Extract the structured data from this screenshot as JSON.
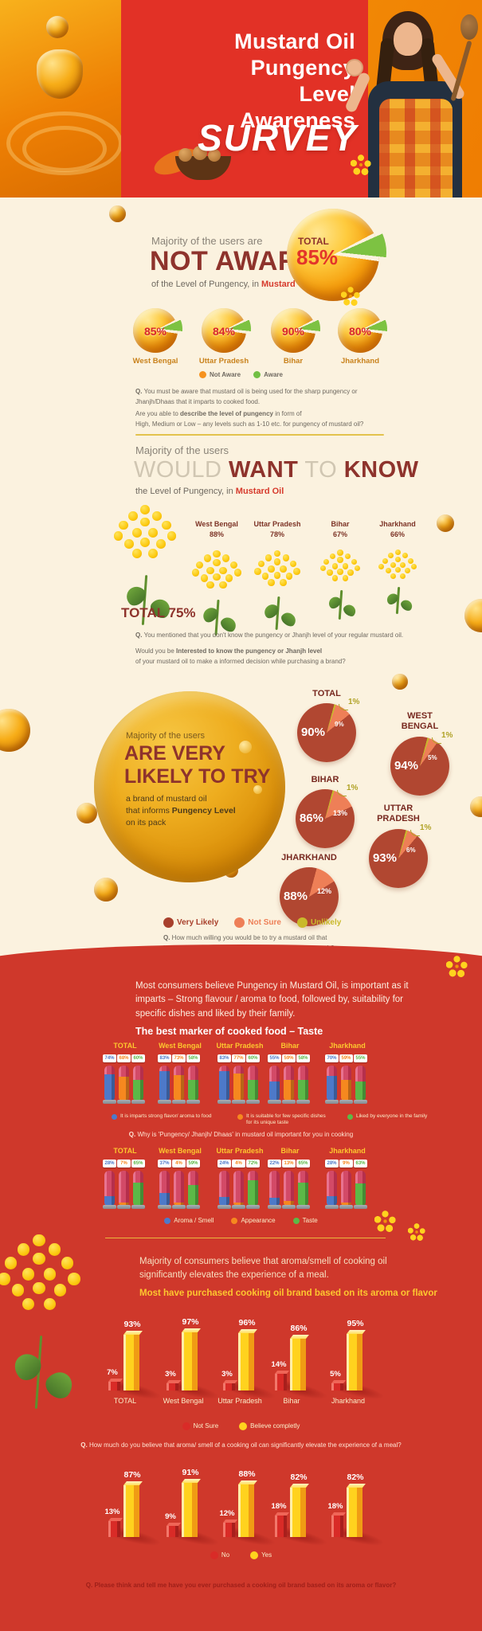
{
  "palette": {
    "cream": "#fbf2df",
    "header_orange": "#f28a06",
    "header_red": "#e23126",
    "red_zone": "#cf382b",
    "maroon": "#8e332c",
    "accent_red": "#d63a2c",
    "not_aware_orange": "#f6921e",
    "aware_green": "#72bf44",
    "very_likely": "#a8402c",
    "not_sure": "#ee7f57",
    "unlikely": "#c9b92b",
    "bar_blue": "#4d79c9",
    "bar_orange": "#f6881f",
    "bar_green": "#5cb947",
    "yellow": "#fdc72f",
    "chart_yellow": "#ffd21e",
    "chart_red": "#d92b27"
  },
  "header": {
    "title_lines": "Mustard Oil\nPungency\nLevel\nAwareness",
    "survey_label": "SURVEY"
  },
  "awareness": {
    "intro": "Majority of the users are",
    "headline": "NOT AWARE",
    "sub_parts": [
      {
        "t": "of the Level of Pungency, in "
      },
      {
        "t": "Mustard Oil",
        "b": true,
        "c": "#d63a2c"
      }
    ],
    "total_label": "TOTAL",
    "total_value": "85%",
    "legend": [
      {
        "label": "Not Aware",
        "color": "#f6921e"
      },
      {
        "label": "Aware",
        "color": "#72bf44"
      }
    ],
    "question1": [
      {
        "t": "Q. ",
        "b": true
      },
      {
        "t": "You must be aware that mustard oil is being used for the sharp pungency or\nJhanjh/Dhaas that it imparts to cooked food."
      }
    ],
    "question2": [
      {
        "t": "Are you able to "
      },
      {
        "t": "describe the level of pungency",
        "b": true
      },
      {
        "t": " in form of\nHigh, Medium or Low – any levels such as 1-10 etc. for pungency of mustard oil?"
      }
    ]
  },
  "want_to_know": {
    "intro": "Majority of the users",
    "headline_parts": [
      {
        "t": "WOULD ",
        "c": "#d0c6b2"
      },
      {
        "t": "WANT",
        "b": true,
        "c": "#8e332c"
      },
      {
        "t": " TO ",
        "c": "#d0c6b2"
      },
      {
        "t": "KNOW",
        "b": true,
        "c": "#8e332c"
      }
    ],
    "sub_parts": [
      {
        "t": "the Level of Pungency, in "
      },
      {
        "t": "Mustard Oil",
        "b": true,
        "c": "#d63a2c"
      }
    ],
    "total_label": "TOTAL 75%",
    "question1": [
      {
        "t": "Q. ",
        "b": true
      },
      {
        "t": "You mentioned that you don't know the pungency or Jhanjh level of your regular mustard oil."
      }
    ],
    "question2": [
      {
        "t": "Would you be "
      },
      {
        "t": "Interested to know the pungency or Jhanjh level",
        "b": true
      },
      {
        "t": "\nof your mustard oil to make a informed decision while purchasing a brand?"
      }
    ]
  },
  "likely_to_try": {
    "intro": "Majority of the users",
    "headline": "ARE VERY\nLIKELY TO TRY",
    "sub_parts": [
      {
        "t": "a brand of mustard oil\nthat informs "
      },
      {
        "t": "Pungency Level",
        "b": true
      },
      {
        "t": "\non its pack"
      }
    ],
    "legend": [
      {
        "label": "Very Likely",
        "color": "#a8402c"
      },
      {
        "label": "Not Sure",
        "color": "#ee7f57"
      },
      {
        "label": "Unlikely",
        "color": "#c9b92b"
      }
    ],
    "question": [
      {
        "t": "Q. ",
        "b": true
      },
      {
        "t": "How much willing you would be to try a mustard oil that\n"
      },
      {
        "t": "informs about the pungency or Jhanjh level on its pack?",
        "b": true
      }
    ]
  },
  "red_zone": {
    "paragraph": "Most consumers believe Pungency in Mustard Oil, is important as it\nimparts – Strong flavour / aroma to food, followed by, suitability for\nspecific dishes and liked by their family.",
    "chart1_title": "The best marker of cooked food – Taste",
    "q_why": [
      {
        "t": "Q. ",
        "b": true
      },
      {
        "t": "Why is 'Pungency/ Jhanjh/ Dhaas' in mustard oil important for you in cooking"
      }
    ],
    "aroma_text": "Majority of consumers believe that aroma/smell of cooking oil\nsignificantly elevates the experience of a meal.",
    "aroma_heading": "Most have purchased cooking oil brand based on its aroma or flavor",
    "q_believe": [
      {
        "t": "Q. ",
        "b": true
      },
      {
        "t": "How much do you believe that aroma/ smell of a cooking oil can significantly elevate the experience of a meal?"
      }
    ],
    "final_q": [
      {
        "t": "Q. ",
        "b": true
      },
      {
        "t": "Please think and tell me have you ever purchased a cooking oil brand based on its aroma or flavor?"
      }
    ]
  },
  "chart_data": [
    {
      "id": "awareness",
      "type": "pie",
      "title": "NOT AWARE of the Level of Pungency in Mustard Oil",
      "legend": [
        "Not Aware",
        "Aware"
      ],
      "groups": [
        {
          "name": "TOTAL",
          "not_aware": 85,
          "aware": 15
        },
        {
          "name": "West Bengal",
          "not_aware": 85,
          "aware": 15
        },
        {
          "name": "Uttar Pradesh",
          "not_aware": 84,
          "aware": 16
        },
        {
          "name": "Bihar",
          "not_aware": 90,
          "aware": 10
        },
        {
          "name": "Jharkhand",
          "not_aware": 80,
          "aware": 20
        }
      ]
    },
    {
      "id": "want_to_know",
      "type": "pictogram",
      "title": "WOULD WANT TO KNOW the Level of Pungency in Mustard Oil",
      "unit": "%",
      "groups": [
        {
          "name": "West Bengal",
          "value": 88
        },
        {
          "name": "Uttar Pradesh",
          "value": 78
        },
        {
          "name": "Bihar",
          "value": 67
        },
        {
          "name": "Jharkhand",
          "value": 66
        },
        {
          "name": "TOTAL",
          "value": 75
        }
      ]
    },
    {
      "id": "likely_to_try",
      "type": "pie",
      "title": "ARE VERY LIKELY TO TRY a brand that informs Pungency Level",
      "legend": [
        "Very Likely",
        "Not Sure",
        "Unlikely"
      ],
      "groups": [
        {
          "name": "TOTAL",
          "label": "TOTAL",
          "very_likely": 90,
          "not_sure": 9,
          "unlikely": 1
        },
        {
          "name": "WEST BENGAL",
          "label": "WEST\nBENGAL",
          "very_likely": 94,
          "not_sure": 5,
          "unlikely": 1
        },
        {
          "name": "BIHAR",
          "label": "BIHAR",
          "very_likely": 86,
          "not_sure": 13,
          "unlikely": 1
        },
        {
          "name": "UTTAR PRADESH",
          "label": "UTTAR\nPRADESH",
          "very_likely": 93,
          "not_sure": 6,
          "unlikely": 1
        },
        {
          "name": "JHARKHAND",
          "label": "JHARKHAND",
          "very_likely": 88,
          "not_sure": 12,
          "unlikely": 0
        }
      ]
    },
    {
      "id": "best_marker",
      "type": "bar",
      "title": "The best marker of cooked food – Taste",
      "categories": [
        "TOTAL",
        "West Bengal",
        "Uttar Pradesh",
        "Bihar",
        "Jharkhand"
      ],
      "series": [
        {
          "name": "It is imparts strong flavor/ aroma to food",
          "color": "#4d79c9",
          "values": [
            74,
            83,
            83,
            55,
            70
          ]
        },
        {
          "name": "It is suitable for few specific dishes\nfor its unique taste",
          "color": "#f6881f",
          "values": [
            68,
            73,
            77,
            59,
            59
          ]
        },
        {
          "name": "Liked by everyone in the family",
          "color": "#5cb947",
          "values": [
            60,
            58,
            60,
            58,
            55
          ]
        }
      ]
    },
    {
      "id": "why_pungency",
      "type": "bar",
      "title": "Why is 'Pungency/ Jhanjh/ Dhaas' in mustard oil important for you in cooking",
      "categories": [
        "TOTAL",
        "West Bengal",
        "Uttar Pradesh",
        "Bihar",
        "Jharkhand"
      ],
      "series": [
        {
          "name": "Aroma / Smell",
          "color": "#4d79c9",
          "values": [
            28,
            37,
            24,
            22,
            28
          ]
        },
        {
          "name": "Appearance",
          "color": "#f6881f",
          "values": [
            7,
            4,
            4,
            13,
            9
          ]
        },
        {
          "name": "Taste",
          "color": "#5cb947",
          "values": [
            65,
            59,
            72,
            65,
            63
          ]
        }
      ]
    },
    {
      "id": "purchased_on_aroma",
      "type": "bar",
      "title": "Most have purchased cooking oil brand based on its aroma or flavor",
      "categories": [
        "TOTAL",
        "West Bengal",
        "Uttar Pradesh",
        "Bihar",
        "Jharkhand"
      ],
      "series": [
        {
          "name": "Not Sure",
          "color": "#d92b27",
          "values": [
            7,
            3,
            3,
            14,
            5
          ]
        },
        {
          "name": "Believe completly",
          "color": "#ffd21e",
          "values": [
            93,
            97,
            96,
            86,
            95
          ]
        }
      ]
    },
    {
      "id": "aroma_elevates",
      "type": "bar",
      "title": "How much do you believe that aroma/ smell of a cooking oil can significantly elevate the experience of a meal?",
      "categories": [
        "TOTAL",
        "West Bengal",
        "Uttar Pradesh",
        "Bihar",
        "Jharkhand"
      ],
      "series": [
        {
          "name": "No",
          "color": "#d92b27",
          "values": [
            13,
            9,
            12,
            18,
            18
          ]
        },
        {
          "name": "Yes",
          "color": "#ffd21e",
          "values": [
            87,
            91,
            88,
            82,
            82
          ]
        }
      ]
    }
  ]
}
